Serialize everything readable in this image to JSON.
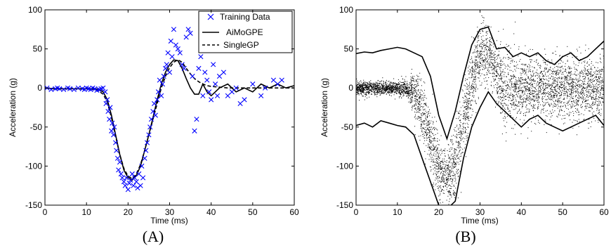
{
  "chart_data": [
    {
      "type": "scatter",
      "panel_label": "(A)",
      "xlabel": "Time (ms)",
      "ylabel": "Acceleration (g)",
      "xlim": [
        0,
        60
      ],
      "ylim": [
        -150,
        100
      ],
      "xticks": [
        0,
        10,
        20,
        30,
        40,
        50,
        60
      ],
      "yticks": [
        -150,
        -100,
        -50,
        0,
        50,
        100
      ],
      "legend_position": "top-right",
      "series": [
        {
          "name": "Training Data",
          "kind": "scatter",
          "marker": "x",
          "color": "#0000ff",
          "x": [
            0.5,
            1.5,
            2.5,
            3.0,
            3.5,
            4.5,
            5.5,
            6.0,
            7.0,
            8.0,
            9.0,
            9.5,
            10.0,
            10.5,
            11.0,
            11.5,
            12.0,
            12.5,
            13.0,
            13.5,
            14.0,
            14.5,
            14.7,
            15.0,
            15.2,
            15.5,
            15.7,
            16.0,
            16.2,
            16.5,
            16.7,
            17.0,
            17.2,
            17.5,
            17.7,
            18.0,
            18.3,
            18.6,
            19.0,
            19.3,
            19.6,
            20.0,
            20.3,
            20.6,
            21.0,
            21.3,
            21.6,
            22.0,
            22.3,
            22.6,
            23.0,
            23.3,
            23.6,
            24.0,
            24.3,
            24.6,
            25.0,
            25.3,
            25.6,
            26.0,
            26.3,
            26.6,
            27.0,
            27.3,
            27.6,
            28.0,
            28.3,
            28.6,
            29.0,
            29.3,
            29.6,
            30.0,
            30.3,
            30.6,
            31.0,
            31.5,
            32.0,
            32.5,
            33.0,
            33.5,
            34.0,
            34.5,
            35.0,
            35.5,
            36.0,
            36.5,
            37.0,
            37.5,
            38.0,
            38.5,
            39.0,
            39.5,
            40.0,
            40.5,
            41.0,
            41.5,
            42.0,
            43.0,
            44.0,
            45.0,
            46.0,
            47.0,
            48.0,
            50.0,
            52.0,
            53.0,
            55.0,
            56.0,
            57.0
          ],
          "y": [
            0,
            -2,
            -1,
            0,
            -1,
            -2,
            0,
            -1,
            -2,
            0,
            -1,
            -2,
            0,
            -1,
            -2,
            0,
            -1,
            -3,
            -2,
            -1,
            0,
            -5,
            -20,
            -15,
            -30,
            -40,
            -25,
            -55,
            -45,
            -60,
            -50,
            -70,
            -80,
            -90,
            -105,
            -95,
            -110,
            -115,
            -120,
            -125,
            -115,
            -130,
            -122,
            -118,
            -110,
            -125,
            -115,
            -120,
            -128,
            -110,
            -125,
            -100,
            -115,
            -90,
            -80,
            -70,
            -60,
            -50,
            -40,
            -30,
            -20,
            -35,
            -15,
            -5,
            10,
            -10,
            5,
            15,
            25,
            30,
            45,
            20,
            60,
            40,
            75,
            55,
            50,
            45,
            30,
            25,
            65,
            75,
            70,
            15,
            -55,
            -40,
            25,
            40,
            -10,
            20,
            10,
            -5,
            -15,
            30,
            5,
            -10,
            15,
            20,
            -10,
            -5,
            0,
            -20,
            -15,
            5,
            -10,
            0,
            10,
            5,
            10
          ]
        },
        {
          "name": "AiMoGPE",
          "kind": "line",
          "style": "solid",
          "color": "#000000",
          "x": [
            0,
            2,
            4,
            6,
            8,
            10,
            12,
            13,
            14,
            15,
            16,
            17,
            18,
            19,
            20,
            21,
            22,
            23,
            24,
            25,
            26,
            27,
            28,
            29,
            30,
            31,
            32,
            33,
            34,
            35,
            36,
            37,
            38,
            39,
            40,
            42,
            44,
            46,
            48,
            50,
            52,
            54,
            56,
            58,
            60
          ],
          "y": [
            0,
            -1,
            -1,
            -1,
            -1,
            -1,
            -1,
            -2,
            -5,
            -15,
            -35,
            -60,
            -85,
            -105,
            -115,
            -118,
            -112,
            -100,
            -80,
            -60,
            -38,
            -15,
            5,
            20,
            30,
            36,
            35,
            25,
            12,
            0,
            -8,
            -8,
            5,
            -5,
            -10,
            0,
            5,
            -5,
            0,
            -5,
            5,
            0,
            5,
            0,
            3
          ]
        },
        {
          "name": "SingleGP",
          "kind": "line",
          "style": "dashed",
          "color": "#000000",
          "x": [
            0,
            2,
            4,
            6,
            8,
            10,
            12,
            13,
            14,
            15,
            16,
            17,
            18,
            19,
            20,
            21,
            22,
            23,
            24,
            25,
            26,
            27,
            28,
            29,
            30,
            31,
            32,
            33,
            34,
            35,
            36,
            37,
            38,
            39,
            40,
            42,
            44,
            46,
            48,
            50,
            52,
            54,
            56,
            58,
            60
          ],
          "y": [
            0,
            -1,
            -1,
            -1,
            -1,
            -1,
            -2,
            -4,
            -8,
            -18,
            -38,
            -62,
            -85,
            -103,
            -113,
            -116,
            -110,
            -98,
            -80,
            -60,
            -40,
            -20,
            0,
            15,
            26,
            33,
            36,
            33,
            25,
            18,
            12,
            8,
            5,
            3,
            2,
            1,
            0,
            0,
            0,
            0,
            0,
            0,
            0,
            0,
            0
          ]
        }
      ]
    },
    {
      "type": "scatter",
      "panel_label": "(B)",
      "xlabel": "Time (ms)",
      "ylabel": "Acceleration (g)",
      "xlim": [
        0,
        60
      ],
      "ylim": [
        -150,
        100
      ],
      "xticks": [
        0,
        10,
        20,
        30,
        40,
        50,
        60
      ],
      "yticks": [
        -150,
        -100,
        -50,
        0,
        50,
        100
      ],
      "series": [
        {
          "kind": "band-upper",
          "style": "solid",
          "color": "#000000",
          "x": [
            0,
            2,
            4,
            6,
            8,
            10,
            12,
            14,
            16,
            18,
            20,
            22,
            24,
            26,
            28,
            30,
            32,
            34,
            36,
            38,
            40,
            42,
            44,
            46,
            48,
            50,
            52,
            54,
            56,
            58,
            60
          ],
          "y": [
            44,
            46,
            45,
            48,
            50,
            52,
            50,
            45,
            40,
            15,
            -35,
            -65,
            -30,
            15,
            55,
            75,
            78,
            50,
            52,
            40,
            45,
            40,
            45,
            35,
            30,
            40,
            45,
            35,
            40,
            50,
            60
          ]
        },
        {
          "kind": "band-lower",
          "style": "solid",
          "color": "#000000",
          "x": [
            0,
            2,
            4,
            6,
            8,
            10,
            12,
            14,
            16,
            18,
            20,
            22,
            24,
            26,
            28,
            30,
            32,
            34,
            36,
            38,
            40,
            42,
            44,
            46,
            48,
            50,
            52,
            54,
            56,
            58,
            60
          ],
          "y": [
            -48,
            -45,
            -50,
            -42,
            -45,
            -48,
            -50,
            -60,
            -90,
            -120,
            -150,
            -155,
            -145,
            -90,
            -50,
            -25,
            -5,
            -20,
            -30,
            -40,
            -50,
            -40,
            -35,
            -45,
            -50,
            -55,
            -50,
            -45,
            -40,
            -35,
            -48
          ]
        },
        {
          "kind": "sample-cloud",
          "marker": "dot",
          "color": "#000000",
          "x": [
            0,
            2,
            4,
            6,
            8,
            10,
            12,
            14,
            16,
            18,
            20,
            22,
            24,
            26,
            28,
            30,
            32,
            34,
            36,
            38,
            40,
            42,
            44,
            46,
            48,
            50,
            52,
            54,
            56,
            58,
            60
          ],
          "y": [
            0,
            0,
            0,
            0,
            0,
            0,
            0,
            -8,
            -30,
            -70,
            -105,
            -115,
            -95,
            -45,
            10,
            45,
            45,
            15,
            -5,
            5,
            0,
            0,
            0,
            0,
            0,
            0,
            0,
            0,
            0,
            0,
            0
          ],
          "spread": [
            8,
            8,
            8,
            8,
            8,
            8,
            10,
            25,
            35,
            40,
            35,
            30,
            40,
            45,
            40,
            35,
            30,
            35,
            40,
            40,
            35,
            35,
            35,
            35,
            35,
            35,
            35,
            35,
            35,
            35,
            35
          ]
        }
      ]
    }
  ]
}
